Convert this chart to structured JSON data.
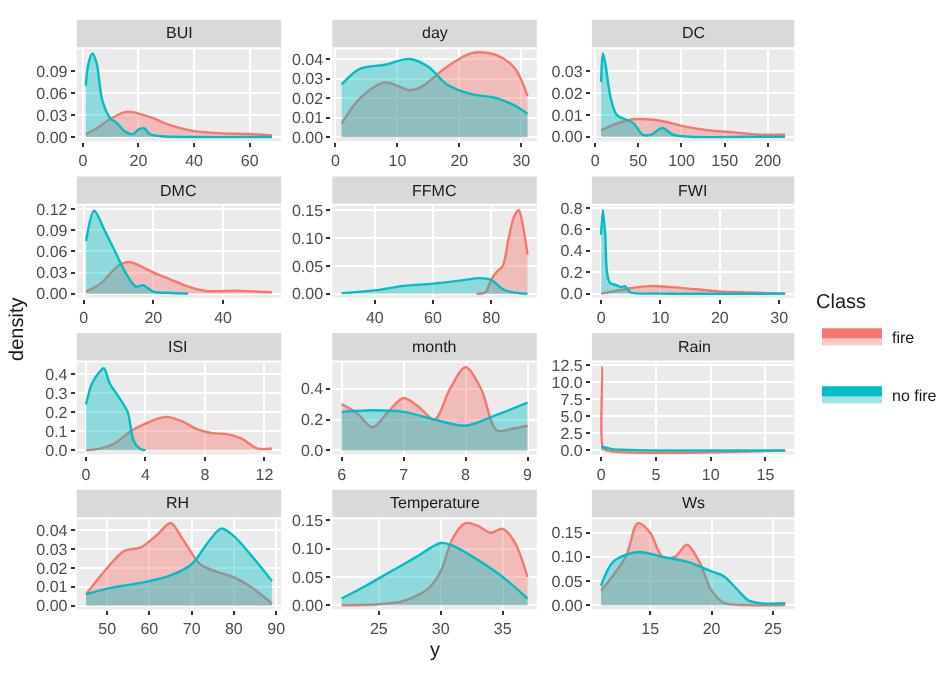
{
  "chart_data": [
    {
      "type": "area",
      "title": "BUI",
      "legend": "right",
      "legend_title": "Class",
      "grid": true,
      "xlim": [
        -2.2,
        71.3
      ],
      "xticks": [
        0,
        20,
        40,
        60
      ],
      "ylim": [
        -0.0057,
        0.12
      ],
      "yticks": [
        {
          "value": 0,
          "label": "0.00"
        },
        {
          "value": 0.03,
          "label": "0.03"
        },
        {
          "value": 0.06,
          "label": "0.06"
        },
        {
          "value": 0.09,
          "label": "0.09"
        }
      ],
      "series": [
        {
          "name": "fire",
          "color": "#f8766d",
          "x": [
            1.1,
            5,
            10,
            15,
            18,
            25,
            30,
            40,
            50,
            60,
            68
          ],
          "values": [
            0.004,
            0.012,
            0.025,
            0.034,
            0.034,
            0.026,
            0.018,
            0.008,
            0.005,
            0.004,
            0.002
          ]
        },
        {
          "name": "no fire",
          "color": "#00bfc4",
          "x": [
            1.1,
            2,
            3.5,
            5,
            7,
            10,
            12,
            15,
            18,
            20,
            22,
            24,
            28,
            40,
            68
          ],
          "values": [
            0.07,
            0.1,
            0.114,
            0.1,
            0.05,
            0.025,
            0.02,
            0.008,
            0.004,
            0.01,
            0.012,
            0.004,
            0.001,
            0.0,
            0.0
          ]
        }
      ]
    },
    {
      "type": "area",
      "title": "day",
      "grid": true,
      "xlim": [
        -0.5,
        32.5
      ],
      "xticks": [
        0,
        10,
        20,
        30
      ],
      "ylim": [
        -0.002,
        0.045
      ],
      "yticks": [
        {
          "value": 0,
          "label": "0.00"
        },
        {
          "value": 0.01,
          "label": "0.01"
        },
        {
          "value": 0.02,
          "label": "0.02"
        },
        {
          "value": 0.03,
          "label": "0.03"
        },
        {
          "value": 0.04,
          "label": "0.04"
        }
      ],
      "series": [
        {
          "name": "fire",
          "color": "#f8766d",
          "x": [
            1,
            4,
            8,
            12,
            14,
            18,
            22,
            26,
            29,
            31
          ],
          "values": [
            0.007,
            0.02,
            0.028,
            0.024,
            0.026,
            0.036,
            0.043,
            0.042,
            0.035,
            0.021
          ]
        },
        {
          "name": "no fire",
          "color": "#00bfc4",
          "x": [
            1,
            4,
            8,
            12,
            15,
            18,
            22,
            26,
            29,
            31
          ],
          "values": [
            0.027,
            0.035,
            0.037,
            0.04,
            0.036,
            0.027,
            0.022,
            0.02,
            0.016,
            0.012
          ]
        }
      ]
    },
    {
      "type": "area",
      "title": "DC",
      "grid": true,
      "xlim": [
        -3.7,
        230.7
      ],
      "xticks": [
        0,
        50,
        100,
        150,
        200
      ],
      "ylim": [
        -0.002,
        0.04
      ],
      "yticks": [
        {
          "value": 0,
          "label": "0.00"
        },
        {
          "value": 0.01,
          "label": "0.01"
        },
        {
          "value": 0.02,
          "label": "0.02"
        },
        {
          "value": 0.03,
          "label": "0.03"
        }
      ],
      "series": [
        {
          "name": "fire",
          "color": "#f8766d",
          "x": [
            7,
            25,
            45,
            60,
            80,
            100,
            130,
            160,
            190,
            220
          ],
          "values": [
            0.003,
            0.006,
            0.008,
            0.008,
            0.007,
            0.005,
            0.003,
            0.002,
            0.001,
            0.001
          ]
        },
        {
          "name": "no fire",
          "color": "#00bfc4",
          "x": [
            7,
            9,
            12,
            18,
            25,
            35,
            45,
            55,
            65,
            78,
            90,
            110,
            180,
            220
          ],
          "values": [
            0.025,
            0.038,
            0.033,
            0.018,
            0.01,
            0.008,
            0.006,
            0.001,
            0.001,
            0.004,
            0.001,
            0.0,
            0.0,
            0.0
          ]
        }
      ]
    },
    {
      "type": "area",
      "title": "DMC",
      "grid": true,
      "xlim": [
        -2,
        56.7
      ],
      "xticks": [
        0,
        20,
        40
      ],
      "ylim": [
        -0.006,
        0.125
      ],
      "yticks": [
        {
          "value": 0,
          "label": "0.00"
        },
        {
          "value": 0.03,
          "label": "0.03"
        },
        {
          "value": 0.06,
          "label": "0.06"
        },
        {
          "value": 0.09,
          "label": "0.09"
        },
        {
          "value": 0.12,
          "label": "0.12"
        }
      ],
      "series": [
        {
          "name": "fire",
          "color": "#f8766d",
          "x": [
            0.7,
            5,
            10,
            13,
            16,
            20,
            25,
            30,
            35,
            45,
            54
          ],
          "values": [
            0.003,
            0.015,
            0.04,
            0.045,
            0.04,
            0.03,
            0.02,
            0.01,
            0.004,
            0.004,
            0.002
          ]
        },
        {
          "name": "no fire",
          "color": "#00bfc4",
          "x": [
            0.7,
            3,
            6,
            9,
            12,
            15,
            17,
            20,
            25,
            30
          ],
          "values": [
            0.075,
            0.118,
            0.09,
            0.06,
            0.03,
            0.01,
            0.012,
            0.003,
            0.001,
            0.0
          ]
        }
      ]
    },
    {
      "type": "area",
      "title": "FFMC",
      "grid": true,
      "xlim": [
        25.4,
        95.7
      ],
      "xticks": [
        40,
        60,
        80
      ],
      "ylim": [
        -0.0075,
        0.158
      ],
      "yticks": [
        {
          "value": 0,
          "label": "0.00"
        },
        {
          "value": 0.05,
          "label": "0.05"
        },
        {
          "value": 0.1,
          "label": "0.10"
        },
        {
          "value": 0.15,
          "label": "0.15"
        }
      ],
      "series": [
        {
          "name": "fire",
          "color": "#f8766d",
          "x": [
            75,
            78,
            80,
            82,
            84,
            86,
            88,
            89.5,
            91,
            92.5
          ],
          "values": [
            0.0,
            0.002,
            0.025,
            0.04,
            0.05,
            0.1,
            0.14,
            0.15,
            0.12,
            0.07
          ]
        },
        {
          "name": "no fire",
          "color": "#00bfc4",
          "x": [
            28.6,
            40,
            50,
            60,
            70,
            76,
            80,
            84,
            88,
            92.5
          ],
          "values": [
            0.001,
            0.006,
            0.014,
            0.018,
            0.024,
            0.028,
            0.025,
            0.008,
            0.002,
            0.0
          ]
        }
      ]
    },
    {
      "type": "area",
      "title": "FWI",
      "grid": true,
      "xlim": [
        -1.55,
        32.55
      ],
      "xticks": [
        0,
        10,
        20,
        30
      ],
      "ylim": [
        -0.04,
        0.82
      ],
      "yticks": [
        {
          "value": 0,
          "label": "0.0"
        },
        {
          "value": 0.2,
          "label": "0.2"
        },
        {
          "value": 0.4,
          "label": "0.4"
        },
        {
          "value": 0.6,
          "label": "0.6"
        },
        {
          "value": 0.8,
          "label": "0.8"
        }
      ],
      "series": [
        {
          "name": "fire",
          "color": "#f8766d",
          "x": [
            0,
            2,
            5,
            8,
            12,
            16,
            20,
            25,
            31
          ],
          "values": [
            0.0,
            0.02,
            0.05,
            0.07,
            0.06,
            0.04,
            0.02,
            0.01,
            0.0
          ]
        },
        {
          "name": "no fire",
          "color": "#00bfc4",
          "x": [
            0,
            0.3,
            0.7,
            1,
            1.5,
            2.5,
            3.5,
            4,
            4.5,
            5,
            10,
            31
          ],
          "values": [
            0.55,
            0.78,
            0.55,
            0.2,
            0.1,
            0.08,
            0.06,
            0.07,
            0.04,
            0.01,
            0.0,
            0.0
          ]
        }
      ]
    },
    {
      "type": "area",
      "title": "ISI",
      "ylabel": "density",
      "grid": true,
      "xlim": [
        -0.625,
        13.125
      ],
      "xticks": [
        0,
        4,
        8,
        12
      ],
      "ylim": [
        -0.022,
        0.46
      ],
      "yticks": [
        {
          "value": 0,
          "label": "0.0"
        },
        {
          "value": 0.1,
          "label": "0.1"
        },
        {
          "value": 0.2,
          "label": "0.2"
        },
        {
          "value": 0.3,
          "label": "0.3"
        },
        {
          "value": 0.4,
          "label": "0.4"
        }
      ],
      "series": [
        {
          "name": "fire",
          "color": "#f8766d",
          "x": [
            0,
            1,
            2,
            3,
            4,
            5,
            5.5,
            6.5,
            7.5,
            8.5,
            9.5,
            10.5,
            11.5,
            12.5
          ],
          "values": [
            0.0,
            0.01,
            0.04,
            0.1,
            0.14,
            0.17,
            0.175,
            0.15,
            0.11,
            0.09,
            0.085,
            0.06,
            0.01,
            0.01
          ]
        },
        {
          "name": "no fire",
          "color": "#00bfc4",
          "x": [
            0,
            0.4,
            0.9,
            1.2,
            1.6,
            2.2,
            2.8,
            3.2,
            3.6,
            4
          ],
          "values": [
            0.24,
            0.35,
            0.41,
            0.43,
            0.35,
            0.28,
            0.2,
            0.05,
            0.01,
            0.0
          ]
        }
      ]
    },
    {
      "type": "area",
      "title": "month",
      "grid": true,
      "xlim": [
        5.85,
        9.15
      ],
      "xticks": [
        6,
        7,
        8,
        9
      ],
      "ylim": [
        -0.027,
        0.57
      ],
      "yticks": [
        {
          "value": 0,
          "label": "0.0"
        },
        {
          "value": 0.2,
          "label": "0.2"
        },
        {
          "value": 0.4,
          "label": "0.4"
        }
      ],
      "series": [
        {
          "name": "fire",
          "color": "#f8766d",
          "x": [
            6,
            6.25,
            6.5,
            6.75,
            7,
            7.25,
            7.5,
            7.75,
            8,
            8.25,
            8.5,
            8.75,
            9
          ],
          "values": [
            0.3,
            0.24,
            0.15,
            0.25,
            0.34,
            0.28,
            0.2,
            0.4,
            0.54,
            0.4,
            0.13,
            0.14,
            0.16
          ]
        },
        {
          "name": "no fire",
          "color": "#00bfc4",
          "x": [
            6,
            6.5,
            7,
            7.5,
            8,
            8.5,
            9
          ],
          "values": [
            0.25,
            0.26,
            0.25,
            0.2,
            0.16,
            0.23,
            0.31
          ]
        }
      ]
    },
    {
      "type": "area",
      "title": "Rain",
      "grid": true,
      "xlim": [
        -0.84,
        17.64
      ],
      "xticks": [
        0,
        5,
        10,
        15
      ],
      "ylim": [
        -0.6,
        12.9
      ],
      "yticks": [
        {
          "value": 0,
          "label": "0.0"
        },
        {
          "value": 2.5,
          "label": "2.5"
        },
        {
          "value": 5,
          "label": "5.0"
        },
        {
          "value": 7.5,
          "label": "7.5"
        },
        {
          "value": 10,
          "label": "10.0"
        },
        {
          "value": 12.5,
          "label": "12.5"
        }
      ],
      "series": [
        {
          "name": "fire",
          "color": "#f8766d",
          "x": [
            0,
            0.05,
            0.15,
            0.5,
            16.8
          ],
          "values": [
            12.2,
            12.2,
            0.5,
            0.0,
            0.0
          ]
        },
        {
          "name": "no fire",
          "color": "#00bfc4",
          "x": [
            0,
            0.5,
            1,
            2,
            5,
            16.8
          ],
          "values": [
            0.5,
            0.4,
            0.2,
            0.1,
            0.0,
            0.0
          ]
        }
      ]
    },
    {
      "type": "area",
      "title": "RH",
      "grid": true,
      "xlim": [
        42.8,
        91.2
      ],
      "xticks": [
        50,
        60,
        70,
        80,
        90
      ],
      "ylim": [
        -0.002,
        0.046
      ],
      "yticks": [
        {
          "value": 0,
          "label": "0.00"
        },
        {
          "value": 0.01,
          "label": "0.01"
        },
        {
          "value": 0.02,
          "label": "0.02"
        },
        {
          "value": 0.03,
          "label": "0.03"
        },
        {
          "value": 0.04,
          "label": "0.04"
        }
      ],
      "series": [
        {
          "name": "fire",
          "color": "#f8766d",
          "x": [
            45,
            50,
            54,
            58,
            62,
            65,
            68,
            72,
            76,
            80,
            84,
            89
          ],
          "values": [
            0.006,
            0.02,
            0.029,
            0.031,
            0.038,
            0.044,
            0.035,
            0.022,
            0.018,
            0.015,
            0.01,
            0.001
          ]
        },
        {
          "name": "no fire",
          "color": "#00bfc4",
          "x": [
            45,
            50,
            55,
            60,
            65,
            70,
            74,
            77,
            80,
            84,
            89
          ],
          "values": [
            0.006,
            0.009,
            0.011,
            0.013,
            0.016,
            0.022,
            0.034,
            0.041,
            0.037,
            0.027,
            0.013
          ]
        }
      ]
    },
    {
      "type": "area",
      "title": "Temperature",
      "xlabel": "y",
      "grid": true,
      "xlim": [
        21.25,
        37.75
      ],
      "xticks": [
        25,
        30,
        35
      ],
      "ylim": [
        -0.007,
        0.152
      ],
      "yticks": [
        {
          "value": 0,
          "label": "0.00"
        },
        {
          "value": 0.05,
          "label": "0.05"
        },
        {
          "value": 0.1,
          "label": "0.10"
        },
        {
          "value": 0.15,
          "label": "0.15"
        }
      ],
      "series": [
        {
          "name": "fire",
          "color": "#f8766d",
          "x": [
            22,
            25,
            27,
            29,
            30,
            31,
            32,
            33,
            34,
            35,
            36,
            37
          ],
          "values": [
            0.0,
            0.002,
            0.008,
            0.03,
            0.06,
            0.12,
            0.145,
            0.14,
            0.128,
            0.135,
            0.11,
            0.05
          ]
        },
        {
          "name": "no fire",
          "color": "#00bfc4",
          "x": [
            22,
            24,
            26,
            28,
            30,
            31,
            33,
            35,
            37
          ],
          "values": [
            0.012,
            0.035,
            0.06,
            0.085,
            0.11,
            0.105,
            0.08,
            0.05,
            0.012
          ]
        }
      ]
    },
    {
      "type": "area",
      "title": "Ws",
      "grid": true,
      "xlim": [
        10.25,
        26.75
      ],
      "xticks": [
        15,
        20,
        25
      ],
      "ylim": [
        -0.0085,
        0.178
      ],
      "yticks": [
        {
          "value": 0,
          "label": "0.00"
        },
        {
          "value": 0.05,
          "label": "0.05"
        },
        {
          "value": 0.1,
          "label": "0.10"
        },
        {
          "value": 0.15,
          "label": "0.15"
        }
      ],
      "series": [
        {
          "name": "fire",
          "color": "#f8766d",
          "x": [
            11,
            13,
            14,
            15,
            16,
            17,
            18,
            19,
            20,
            21,
            23,
            26
          ],
          "values": [
            0.03,
            0.1,
            0.17,
            0.15,
            0.1,
            0.1,
            0.125,
            0.09,
            0.03,
            0.005,
            0.0,
            0.0
          ]
        },
        {
          "name": "no fire",
          "color": "#00bfc4",
          "x": [
            11,
            12,
            14,
            16,
            18,
            20,
            21,
            22,
            23,
            24,
            26
          ],
          "values": [
            0.04,
            0.09,
            0.11,
            0.1,
            0.09,
            0.07,
            0.06,
            0.035,
            0.01,
            0.004,
            0.004
          ]
        }
      ]
    }
  ]
}
